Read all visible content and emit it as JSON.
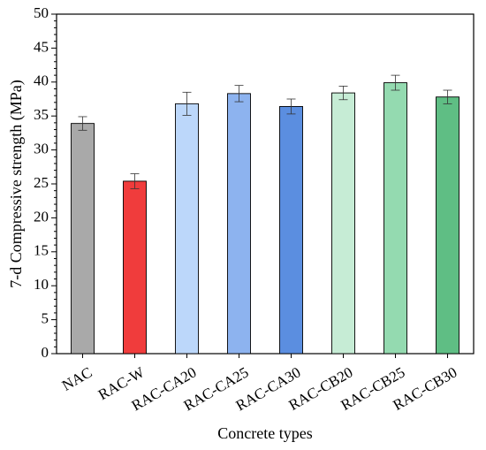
{
  "chart_data": {
    "type": "bar",
    "title": "",
    "xlabel": "Concrete types",
    "ylabel": "7-d Compressive strength (MPa)",
    "ylim": [
      0,
      50
    ],
    "yticks": [
      0,
      5,
      10,
      15,
      20,
      25,
      30,
      35,
      40,
      45,
      50
    ],
    "grid": false,
    "categories": [
      "NAC",
      "RAC-W",
      "RAC-CA20",
      "RAC-CA25",
      "RAC-CA30",
      "RAC-CB20",
      "RAC-CB25",
      "RAC-CB30"
    ],
    "values": [
      33.9,
      25.4,
      36.8,
      38.3,
      36.4,
      38.4,
      39.9,
      37.8
    ],
    "errors": [
      1.0,
      1.1,
      1.7,
      1.2,
      1.1,
      1.0,
      1.1,
      1.0
    ],
    "colors": [
      "#a9a9a9",
      "#f03c3c",
      "#bcd7fa",
      "#8db3ef",
      "#5b8ee0",
      "#c6ecd5",
      "#94dab0",
      "#5fbe84"
    ]
  }
}
